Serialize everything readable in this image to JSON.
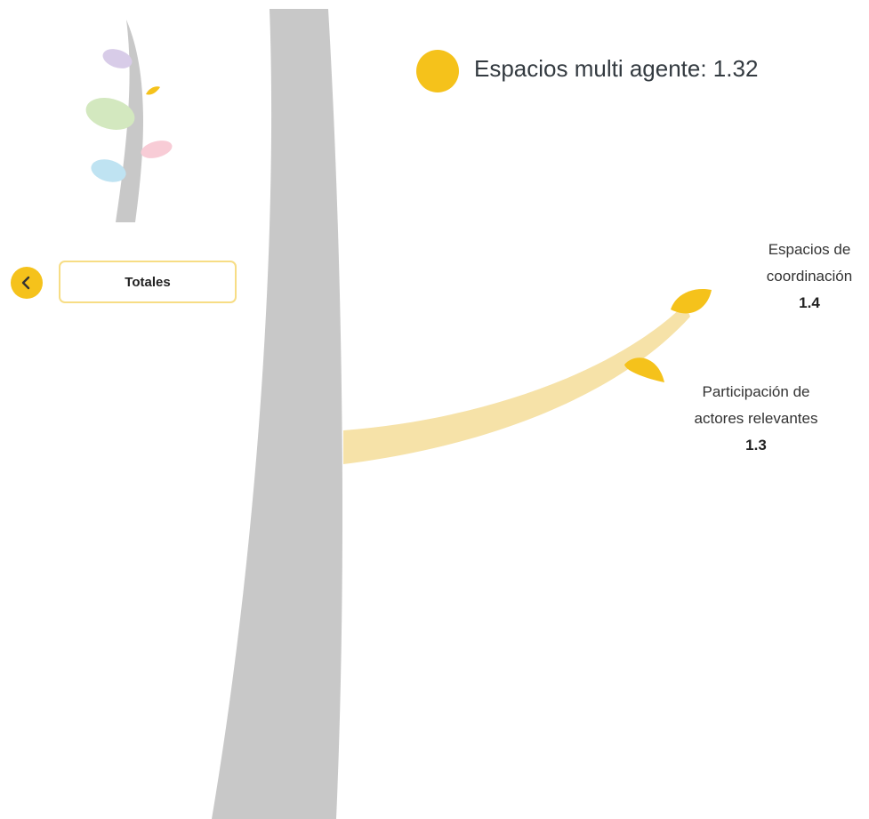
{
  "navigation": {
    "back_icon": "chevron-left-icon",
    "totales_label": "Totales"
  },
  "legend": {
    "label": "Espacios multi agente: 1.32"
  },
  "leaves": [
    {
      "name_line1": "Espacios de",
      "name_line2": "coordinación",
      "value": "1.4"
    },
    {
      "name_line1": "Participación de",
      "name_line2": "actores relevantes",
      "value": "1.3"
    }
  ],
  "colors": {
    "trunk": "#c8c8c8",
    "branch": "#f6e2a8",
    "leaf": "#f5c21b",
    "accent": "#f5c21b",
    "thumb_purple": "#d8cce8",
    "thumb_green": "#d3e8bf",
    "thumb_pink": "#f8ccd6",
    "thumb_blue": "#bfe3f2"
  }
}
